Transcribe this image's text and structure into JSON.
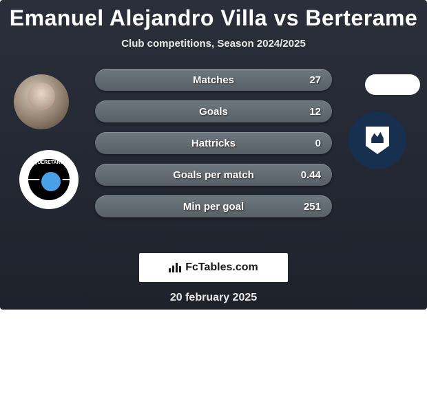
{
  "header": {
    "title": "Emanuel Alejandro Villa vs Berterame",
    "subtitle": "Club competitions, Season 2024/2025"
  },
  "stats": [
    {
      "label": "Matches",
      "value": "27"
    },
    {
      "label": "Goals",
      "value": "12"
    },
    {
      "label": "Hattricks",
      "value": "0"
    },
    {
      "label": "Goals per match",
      "value": "0.44"
    },
    {
      "label": "Min per goal",
      "value": "251"
    }
  ],
  "brand": {
    "text": "FcTables.com"
  },
  "footer": {
    "date": "20 february 2025"
  },
  "colors": {
    "card_bg_top": "#2a2f3a",
    "card_bg_bottom": "#1e222b",
    "bar_bg_top": "#6e787f",
    "bar_bg_bottom": "#586067",
    "text": "#ffffff",
    "club_right_bg": "#17304f"
  }
}
